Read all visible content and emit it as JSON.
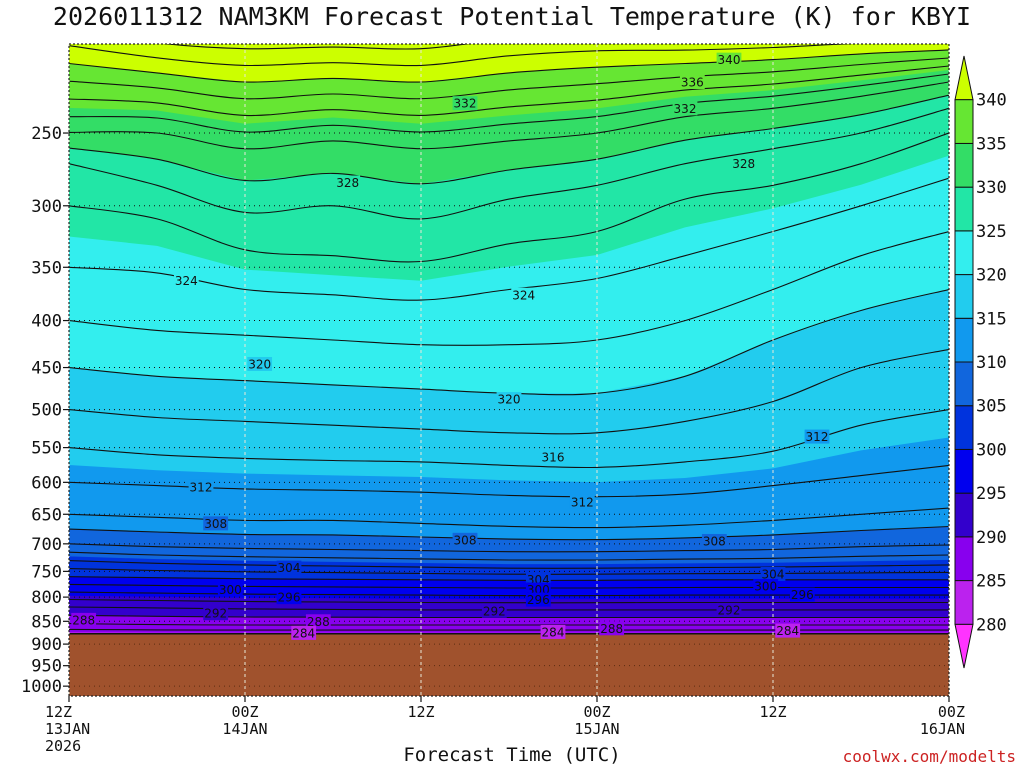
{
  "chart_data": {
    "type": "contour",
    "title": "2026011312 NAM3KM Forecast Potential Temperature (K) for KBYI",
    "xlabel": "Forecast Time (UTC)",
    "ylabel": "",
    "credit": "coolwx.com/modelts",
    "x_ticks": [
      {
        "hour": 0,
        "lines": [
          "12Z",
          "13JAN",
          "2026"
        ]
      },
      {
        "hour": 12,
        "lines": [
          "00Z",
          "14JAN"
        ]
      },
      {
        "hour": 24,
        "lines": [
          "12Z"
        ]
      },
      {
        "hour": 36,
        "lines": [
          "00Z",
          "15JAN"
        ]
      },
      {
        "hour": 48,
        "lines": [
          "12Z"
        ]
      },
      {
        "hour": 60,
        "lines": [
          "00Z",
          "16JAN"
        ]
      }
    ],
    "xlim": [
      0,
      60
    ],
    "y_ticks": [
      250,
      300,
      350,
      400,
      450,
      500,
      550,
      600,
      650,
      700,
      750,
      800,
      850,
      900,
      950,
      1000
    ],
    "ylim": [
      200,
      1025
    ],
    "y_scale": "log",
    "grid": true,
    "terrain_level": 877,
    "terrain_color": "#a0522d",
    "colorbar": {
      "levels": [
        280,
        285,
        290,
        295,
        300,
        305,
        310,
        315,
        320,
        325,
        330,
        335,
        340
      ],
      "labels": [
        "280",
        "285",
        "290",
        "295",
        "300",
        "305",
        "310",
        "315",
        "320",
        "325",
        "330",
        "335",
        "340"
      ],
      "colors": [
        "#ff33ff",
        "#bb22ee",
        "#8800ee",
        "#3300cc",
        "#0000ee",
        "#0033dd",
        "#1166dd",
        "#1199ee",
        "#22ccee",
        "#33eeee",
        "#22e6a6",
        "#33dd66",
        "#66e633",
        "#99ee22",
        "#ccff00"
      ]
    },
    "profiles": [
      {
        "hour": 0,
        "pressure": [
          880,
          855,
          820,
          790,
          760,
          730,
          700,
          650,
          600,
          550,
          500,
          450,
          400,
          350,
          300,
          270,
          240,
          210
        ],
        "theta": [
          284,
          288,
          292,
          296,
          300,
          304,
          308,
          312,
          314,
          316,
          318,
          320,
          322,
          324,
          326,
          328,
          334,
          340
        ]
      },
      {
        "hour": 6,
        "pressure": [
          880,
          857,
          822,
          792,
          762,
          735,
          705,
          655,
          605,
          560,
          510,
          460,
          410,
          355,
          310,
          285,
          250,
          215
        ],
        "theta": [
          284,
          288,
          292,
          296,
          300,
          304,
          308,
          312,
          314,
          316,
          318,
          320,
          322,
          324,
          326,
          328,
          332,
          340
        ]
      },
      {
        "hour": 12,
        "pressure": [
          880,
          858,
          824,
          794,
          764,
          738,
          708,
          660,
          610,
          565,
          515,
          465,
          415,
          370,
          335,
          305,
          260,
          220
        ],
        "theta": [
          284,
          288,
          292,
          296,
          300,
          304,
          308,
          312,
          314,
          316,
          318,
          320,
          322,
          324,
          326,
          328,
          332,
          340
        ]
      },
      {
        "hour": 18,
        "pressure": [
          880,
          858,
          825,
          795,
          765,
          740,
          710,
          660,
          612,
          568,
          520,
          470,
          420,
          375,
          340,
          300,
          255,
          218
        ],
        "theta": [
          284,
          288,
          292,
          296,
          300,
          304,
          308,
          312,
          314,
          316,
          318,
          320,
          322,
          324,
          326,
          328,
          332,
          340
        ]
      },
      {
        "hour": 24,
        "pressure": [
          880,
          858,
          826,
          796,
          766,
          742,
          712,
          665,
          615,
          570,
          525,
          475,
          425,
          380,
          345,
          310,
          260,
          220
        ],
        "theta": [
          284,
          288,
          292,
          296,
          300,
          304,
          308,
          312,
          314,
          316,
          318,
          320,
          322,
          324,
          326,
          328,
          332,
          340
        ]
      },
      {
        "hour": 30,
        "pressure": [
          880,
          858,
          826,
          797,
          767,
          744,
          714,
          670,
          620,
          575,
          530,
          480,
          425,
          370,
          330,
          295,
          255,
          215
        ],
        "theta": [
          284,
          288,
          292,
          296,
          300,
          304,
          308,
          312,
          314,
          316,
          318,
          320,
          322,
          324,
          326,
          328,
          332,
          340
        ]
      },
      {
        "hour": 36,
        "pressure": [
          880,
          858,
          826,
          797,
          767,
          744,
          714,
          672,
          622,
          578,
          530,
          480,
          420,
          360,
          320,
          285,
          250,
          212
        ],
        "theta": [
          284,
          288,
          292,
          296,
          300,
          304,
          308,
          312,
          314,
          316,
          318,
          320,
          322,
          324,
          326,
          328,
          332,
          340
        ]
      },
      {
        "hour": 42,
        "pressure": [
          880,
          858,
          826,
          796,
          766,
          743,
          712,
          668,
          618,
          570,
          515,
          460,
          400,
          340,
          295,
          270,
          240,
          210
        ],
        "theta": [
          284,
          288,
          292,
          296,
          300,
          304,
          308,
          312,
          314,
          316,
          318,
          320,
          322,
          324,
          326,
          328,
          332,
          340
        ]
      },
      {
        "hour": 48,
        "pressure": [
          880,
          858,
          826,
          796,
          766,
          742,
          710,
          660,
          605,
          555,
          490,
          420,
          370,
          320,
          285,
          260,
          235,
          208
        ],
        "theta": [
          284,
          288,
          292,
          296,
          300,
          304,
          308,
          312,
          314,
          316,
          318,
          320,
          322,
          324,
          326,
          328,
          332,
          340
        ]
      },
      {
        "hour": 54,
        "pressure": [
          880,
          858,
          826,
          796,
          766,
          740,
          705,
          650,
          590,
          520,
          450,
          390,
          340,
          300,
          270,
          250,
          228,
          205
        ],
        "theta": [
          284,
          288,
          292,
          296,
          300,
          304,
          308,
          312,
          314,
          316,
          318,
          320,
          322,
          324,
          326,
          328,
          332,
          340
        ]
      },
      {
        "hour": 60,
        "pressure": [
          880,
          858,
          826,
          796,
          766,
          738,
          702,
          640,
          575,
          500,
          430,
          370,
          320,
          280,
          250,
          235,
          220,
          203
        ],
        "theta": [
          284,
          288,
          292,
          296,
          300,
          304,
          308,
          312,
          314,
          316,
          318,
          320,
          322,
          324,
          326,
          328,
          332,
          340
        ]
      }
    ],
    "contour_labels": [
      {
        "text": "340",
        "hour": 45,
        "pressure": 208
      },
      {
        "text": "336",
        "hour": 42.5,
        "pressure": 220
      },
      {
        "text": "332",
        "hour": 27,
        "pressure": 232
      },
      {
        "text": "332",
        "hour": 42,
        "pressure": 235
      },
      {
        "text": "328",
        "hour": 19,
        "pressure": 283
      },
      {
        "text": "328",
        "hour": 46,
        "pressure": 270
      },
      {
        "text": "324",
        "hour": 8,
        "pressure": 362
      },
      {
        "text": "324",
        "hour": 31,
        "pressure": 375
      },
      {
        "text": "320",
        "hour": 13,
        "pressure": 446
      },
      {
        "text": "320",
        "hour": 30,
        "pressure": 487
      },
      {
        "text": "316",
        "hour": 33,
        "pressure": 563
      },
      {
        "text": "312",
        "hour": 9,
        "pressure": 607
      },
      {
        "text": "312",
        "hour": 51,
        "pressure": 535
      },
      {
        "text": "312",
        "hour": 35,
        "pressure": 630
      },
      {
        "text": "308",
        "hour": 10,
        "pressure": 665
      },
      {
        "text": "308",
        "hour": 27,
        "pressure": 693
      },
      {
        "text": "308",
        "hour": 44,
        "pressure": 695
      },
      {
        "text": "304",
        "hour": 15,
        "pressure": 743
      },
      {
        "text": "304",
        "hour": 32,
        "pressure": 765
      },
      {
        "text": "304",
        "hour": 48,
        "pressure": 755
      },
      {
        "text": "300",
        "hour": 11,
        "pressure": 785
      },
      {
        "text": "300",
        "hour": 32,
        "pressure": 785
      },
      {
        "text": "300",
        "hour": 47.5,
        "pressure": 778
      },
      {
        "text": "296",
        "hour": 15,
        "pressure": 800
      },
      {
        "text": "296",
        "hour": 32,
        "pressure": 805
      },
      {
        "text": "296",
        "hour": 50,
        "pressure": 795
      },
      {
        "text": "292",
        "hour": 10,
        "pressure": 833
      },
      {
        "text": "292",
        "hour": 29,
        "pressure": 828
      },
      {
        "text": "292",
        "hour": 45,
        "pressure": 826
      },
      {
        "text": "288",
        "hour": 1,
        "pressure": 847
      },
      {
        "text": "288",
        "hour": 17,
        "pressure": 850
      },
      {
        "text": "288",
        "hour": 37,
        "pressure": 865
      },
      {
        "text": "284",
        "hour": 16,
        "pressure": 875
      },
      {
        "text": "284",
        "hour": 33,
        "pressure": 873
      },
      {
        "text": "284",
        "hour": 49,
        "pressure": 870
      }
    ]
  }
}
